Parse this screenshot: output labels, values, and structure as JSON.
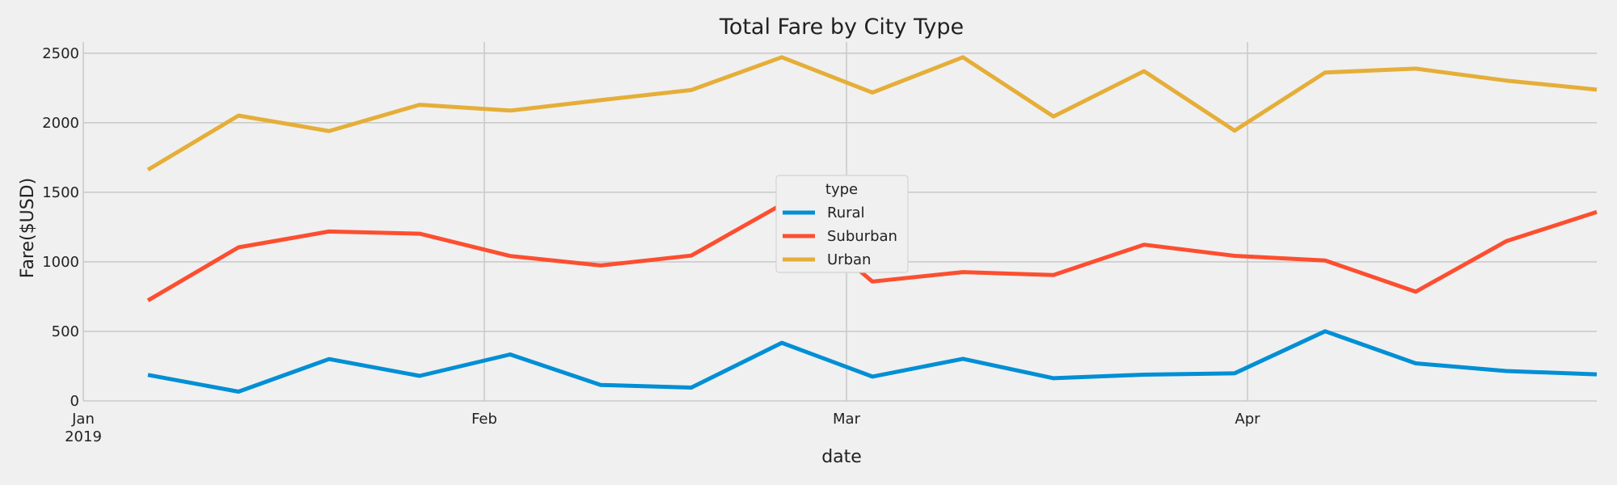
{
  "chart_data": {
    "type": "line",
    "title": "Total Fare by City Type",
    "xlabel": "date",
    "ylabel": "Fare($USD)",
    "x": [
      "2019-01-06",
      "2019-01-13",
      "2019-01-20",
      "2019-01-27",
      "2019-02-03",
      "2019-02-10",
      "2019-02-17",
      "2019-02-24",
      "2019-03-03",
      "2019-03-10",
      "2019-03-17",
      "2019-03-24",
      "2019-03-31",
      "2019-04-07",
      "2019-04-14",
      "2019-04-21",
      "2019-04-28"
    ],
    "x_ticks": [
      {
        "date": "2019-01-01",
        "label": "Jan",
        "sublabel": "2019"
      },
      {
        "date": "2019-02-01",
        "label": "Feb",
        "sublabel": ""
      },
      {
        "date": "2019-03-01",
        "label": "Mar",
        "sublabel": ""
      },
      {
        "date": "2019-04-01",
        "label": "Apr",
        "sublabel": ""
      }
    ],
    "xlim": [
      "2019-01-01",
      "2019-04-28"
    ],
    "y_ticks": [
      "0",
      "500",
      "1000",
      "1500",
      "2000",
      "2500"
    ],
    "ylim": [
      0,
      2580
    ],
    "grid": true,
    "legend": {
      "title": "type",
      "placement": "center"
    },
    "series": [
      {
        "name": "Rural",
        "color": "#008fd5",
        "values": [
          187,
          67,
          301,
          180,
          334,
          115,
          96,
          418,
          175,
          303,
          163,
          189,
          199,
          501,
          270,
          215,
          191
        ]
      },
      {
        "name": "Suburban",
        "color": "#fc4f30",
        "values": [
          722,
          1104,
          1218,
          1202,
          1042,
          974,
          1045,
          1412,
          858,
          926,
          905,
          1123,
          1043,
          1010,
          785,
          1148,
          1358
        ]
      },
      {
        "name": "Urban",
        "color": "#e5ae38",
        "values": [
          1662,
          2051,
          1940,
          2129,
          2087,
          2162,
          2235,
          2471,
          2217,
          2471,
          2045,
          2371,
          1943,
          2361,
          2389,
          2303,
          2238
        ]
      }
    ]
  }
}
